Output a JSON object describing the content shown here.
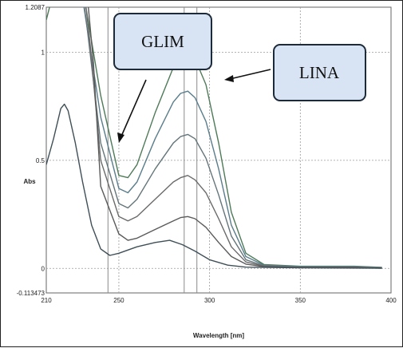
{
  "chart_data": {
    "type": "line",
    "xlabel": "Wavelength [nm]",
    "ylabel": "Abs",
    "xlim": [
      210,
      400
    ],
    "ylim": [
      -0.113473,
      1.2087
    ],
    "xticks": [
      {
        "value": 210,
        "label": "210"
      },
      {
        "value": 250,
        "label": "250"
      },
      {
        "value": 300,
        "label": "300"
      },
      {
        "value": 350,
        "label": "350"
      },
      {
        "value": 400,
        "label": "400"
      }
    ],
    "yticks": [
      {
        "value": 1.2087,
        "label": "1.2087"
      },
      {
        "value": 1,
        "label": "1"
      },
      {
        "value": 0.5,
        "label": "0.5"
      },
      {
        "value": 0,
        "label": "0"
      },
      {
        "value": -0.113473,
        "label": "-0.113473"
      }
    ],
    "grid": true,
    "vlines": [
      244,
      286,
      293
    ],
    "annotations": [
      {
        "text": "GLIM",
        "points_to": [
          250,
          0.7
        ]
      },
      {
        "text": "LINA",
        "points_to": [
          293,
          1.0
        ]
      }
    ],
    "series": [
      {
        "color": "#4e7a58",
        "points": [
          [
            210,
            1.15
          ],
          [
            214,
            1.28
          ],
          [
            220,
            1.5
          ],
          [
            230,
            1.3
          ],
          [
            240,
            0.8
          ],
          [
            250,
            0.43
          ],
          [
            255,
            0.42
          ],
          [
            260,
            0.48
          ],
          [
            270,
            0.72
          ],
          [
            280,
            0.93
          ],
          [
            284,
            0.98
          ],
          [
            288,
            1.0
          ],
          [
            292,
            0.97
          ],
          [
            298,
            0.85
          ],
          [
            305,
            0.58
          ],
          [
            312,
            0.26
          ],
          [
            320,
            0.07
          ],
          [
            330,
            0.018
          ],
          [
            350,
            0.01
          ],
          [
            380,
            0.01
          ],
          [
            395,
            0.005
          ]
        ]
      },
      {
        "color": "#5a7d8c",
        "points": [
          [
            222,
            1.5
          ],
          [
            230,
            1.25
          ],
          [
            240,
            0.7
          ],
          [
            250,
            0.37
          ],
          [
            255,
            0.35
          ],
          [
            260,
            0.4
          ],
          [
            270,
            0.6
          ],
          [
            280,
            0.77
          ],
          [
            284,
            0.81
          ],
          [
            288,
            0.82
          ],
          [
            292,
            0.79
          ],
          [
            298,
            0.68
          ],
          [
            305,
            0.46
          ],
          [
            312,
            0.2
          ],
          [
            320,
            0.055
          ],
          [
            330,
            0.015
          ],
          [
            350,
            0.008
          ],
          [
            380,
            0.008
          ],
          [
            395,
            0.004
          ]
        ]
      },
      {
        "color": "#64757a",
        "points": [
          [
            226,
            1.5
          ],
          [
            232,
            1.15
          ],
          [
            240,
            0.58
          ],
          [
            250,
            0.3
          ],
          [
            255,
            0.28
          ],
          [
            260,
            0.32
          ],
          [
            270,
            0.46
          ],
          [
            280,
            0.58
          ],
          [
            284,
            0.61
          ],
          [
            288,
            0.62
          ],
          [
            292,
            0.6
          ],
          [
            298,
            0.51
          ],
          [
            305,
            0.34
          ],
          [
            312,
            0.15
          ],
          [
            320,
            0.04
          ],
          [
            330,
            0.012
          ],
          [
            350,
            0.006
          ],
          [
            380,
            0.006
          ],
          [
            395,
            0.003
          ]
        ]
      },
      {
        "color": "#6a6a6a",
        "points": [
          [
            228,
            1.5
          ],
          [
            234,
            1.05
          ],
          [
            240,
            0.5
          ],
          [
            250,
            0.24
          ],
          [
            255,
            0.22
          ],
          [
            260,
            0.24
          ],
          [
            270,
            0.32
          ],
          [
            280,
            0.4
          ],
          [
            284,
            0.42
          ],
          [
            288,
            0.43
          ],
          [
            292,
            0.41
          ],
          [
            298,
            0.35
          ],
          [
            305,
            0.23
          ],
          [
            312,
            0.1
          ],
          [
            320,
            0.03
          ],
          [
            330,
            0.01
          ],
          [
            350,
            0.005
          ],
          [
            380,
            0.005
          ],
          [
            395,
            0.002
          ]
        ]
      },
      {
        "color": "#5a5a5a",
        "points": [
          [
            230,
            1.5
          ],
          [
            236,
            0.95
          ],
          [
            240,
            0.38
          ],
          [
            250,
            0.16
          ],
          [
            255,
            0.13
          ],
          [
            260,
            0.14
          ],
          [
            270,
            0.18
          ],
          [
            280,
            0.22
          ],
          [
            284,
            0.235
          ],
          [
            288,
            0.24
          ],
          [
            292,
            0.23
          ],
          [
            298,
            0.19
          ],
          [
            305,
            0.12
          ],
          [
            312,
            0.055
          ],
          [
            320,
            0.02
          ],
          [
            330,
            0.008
          ],
          [
            350,
            0.004
          ],
          [
            380,
            0.004
          ],
          [
            395,
            0.001
          ]
        ]
      },
      {
        "color": "#3f4f58",
        "points": [
          [
            210,
            0.48
          ],
          [
            214,
            0.6
          ],
          [
            218,
            0.74
          ],
          [
            220,
            0.76
          ],
          [
            222,
            0.73
          ],
          [
            226,
            0.58
          ],
          [
            230,
            0.4
          ],
          [
            235,
            0.2
          ],
          [
            240,
            0.09
          ],
          [
            245,
            0.06
          ],
          [
            250,
            0.07
          ],
          [
            260,
            0.1
          ],
          [
            270,
            0.12
          ],
          [
            278,
            0.13
          ],
          [
            285,
            0.11
          ],
          [
            292,
            0.08
          ],
          [
            300,
            0.04
          ],
          [
            310,
            0.015
          ],
          [
            320,
            0.006
          ],
          [
            350,
            0.003
          ],
          [
            395,
            0.001
          ]
        ]
      }
    ]
  }
}
